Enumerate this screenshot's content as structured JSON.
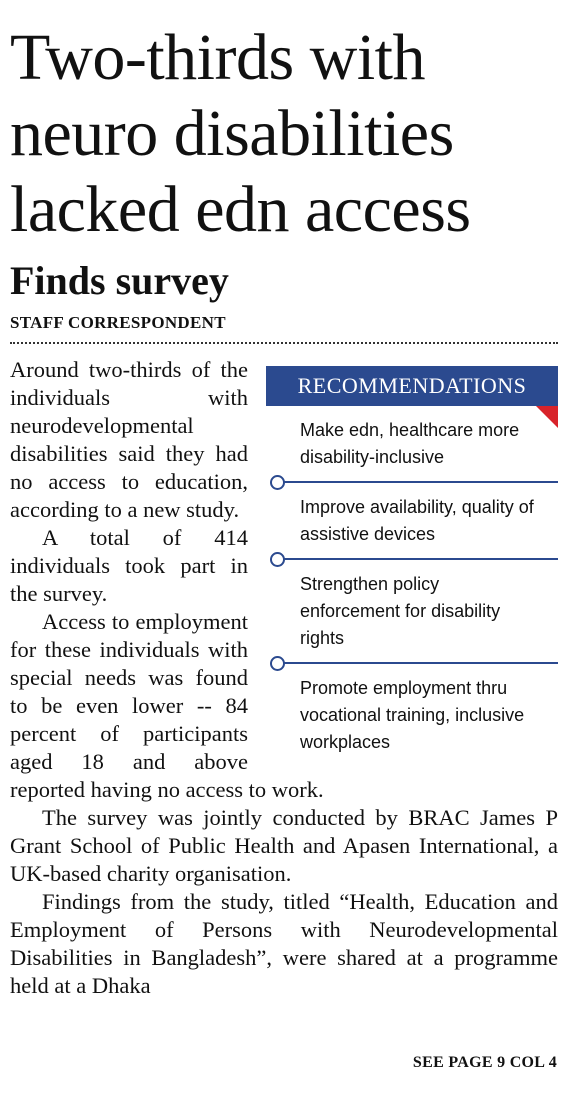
{
  "headline": {
    "lines": [
      "Two-thirds with",
      "neuro disabilities",
      "lacked edn access"
    ]
  },
  "subheadline": "Finds survey",
  "byline": "STAFF CORRESPONDENT",
  "sidebar": {
    "title": "RECOMMENDATIONS",
    "items": [
      "Make edn, healthcare more disability-inclusive",
      "Improve availability, quality of assistive devices",
      "Strengthen policy enforcement for disability rights",
      "Promote employment thru vocational training, inclusive workplaces"
    ]
  },
  "body": {
    "paragraphs": [
      "Around two-thirds of the individuals with neurodevelopmental disabilities said they had no access to education, according to a new study.",
      "A total of 414 individuals took part in the survey.",
      "Access to employment for these individuals with special needs was found to be even lower -- 84 percent of participants aged 18 and above reported having no access to work.",
      "The survey was jointly conducted by BRAC James P Grant School of Public Health and Apasen International, a UK-based charity organisation.",
      "Findings from the study, titled “Health, Education and Employment of Persons with Neurodevelopmental Disabilities in Bangladesh”, were shared at a programme held at a Dhaka"
    ]
  },
  "jump": "SEE PAGE 9 COL 4"
}
